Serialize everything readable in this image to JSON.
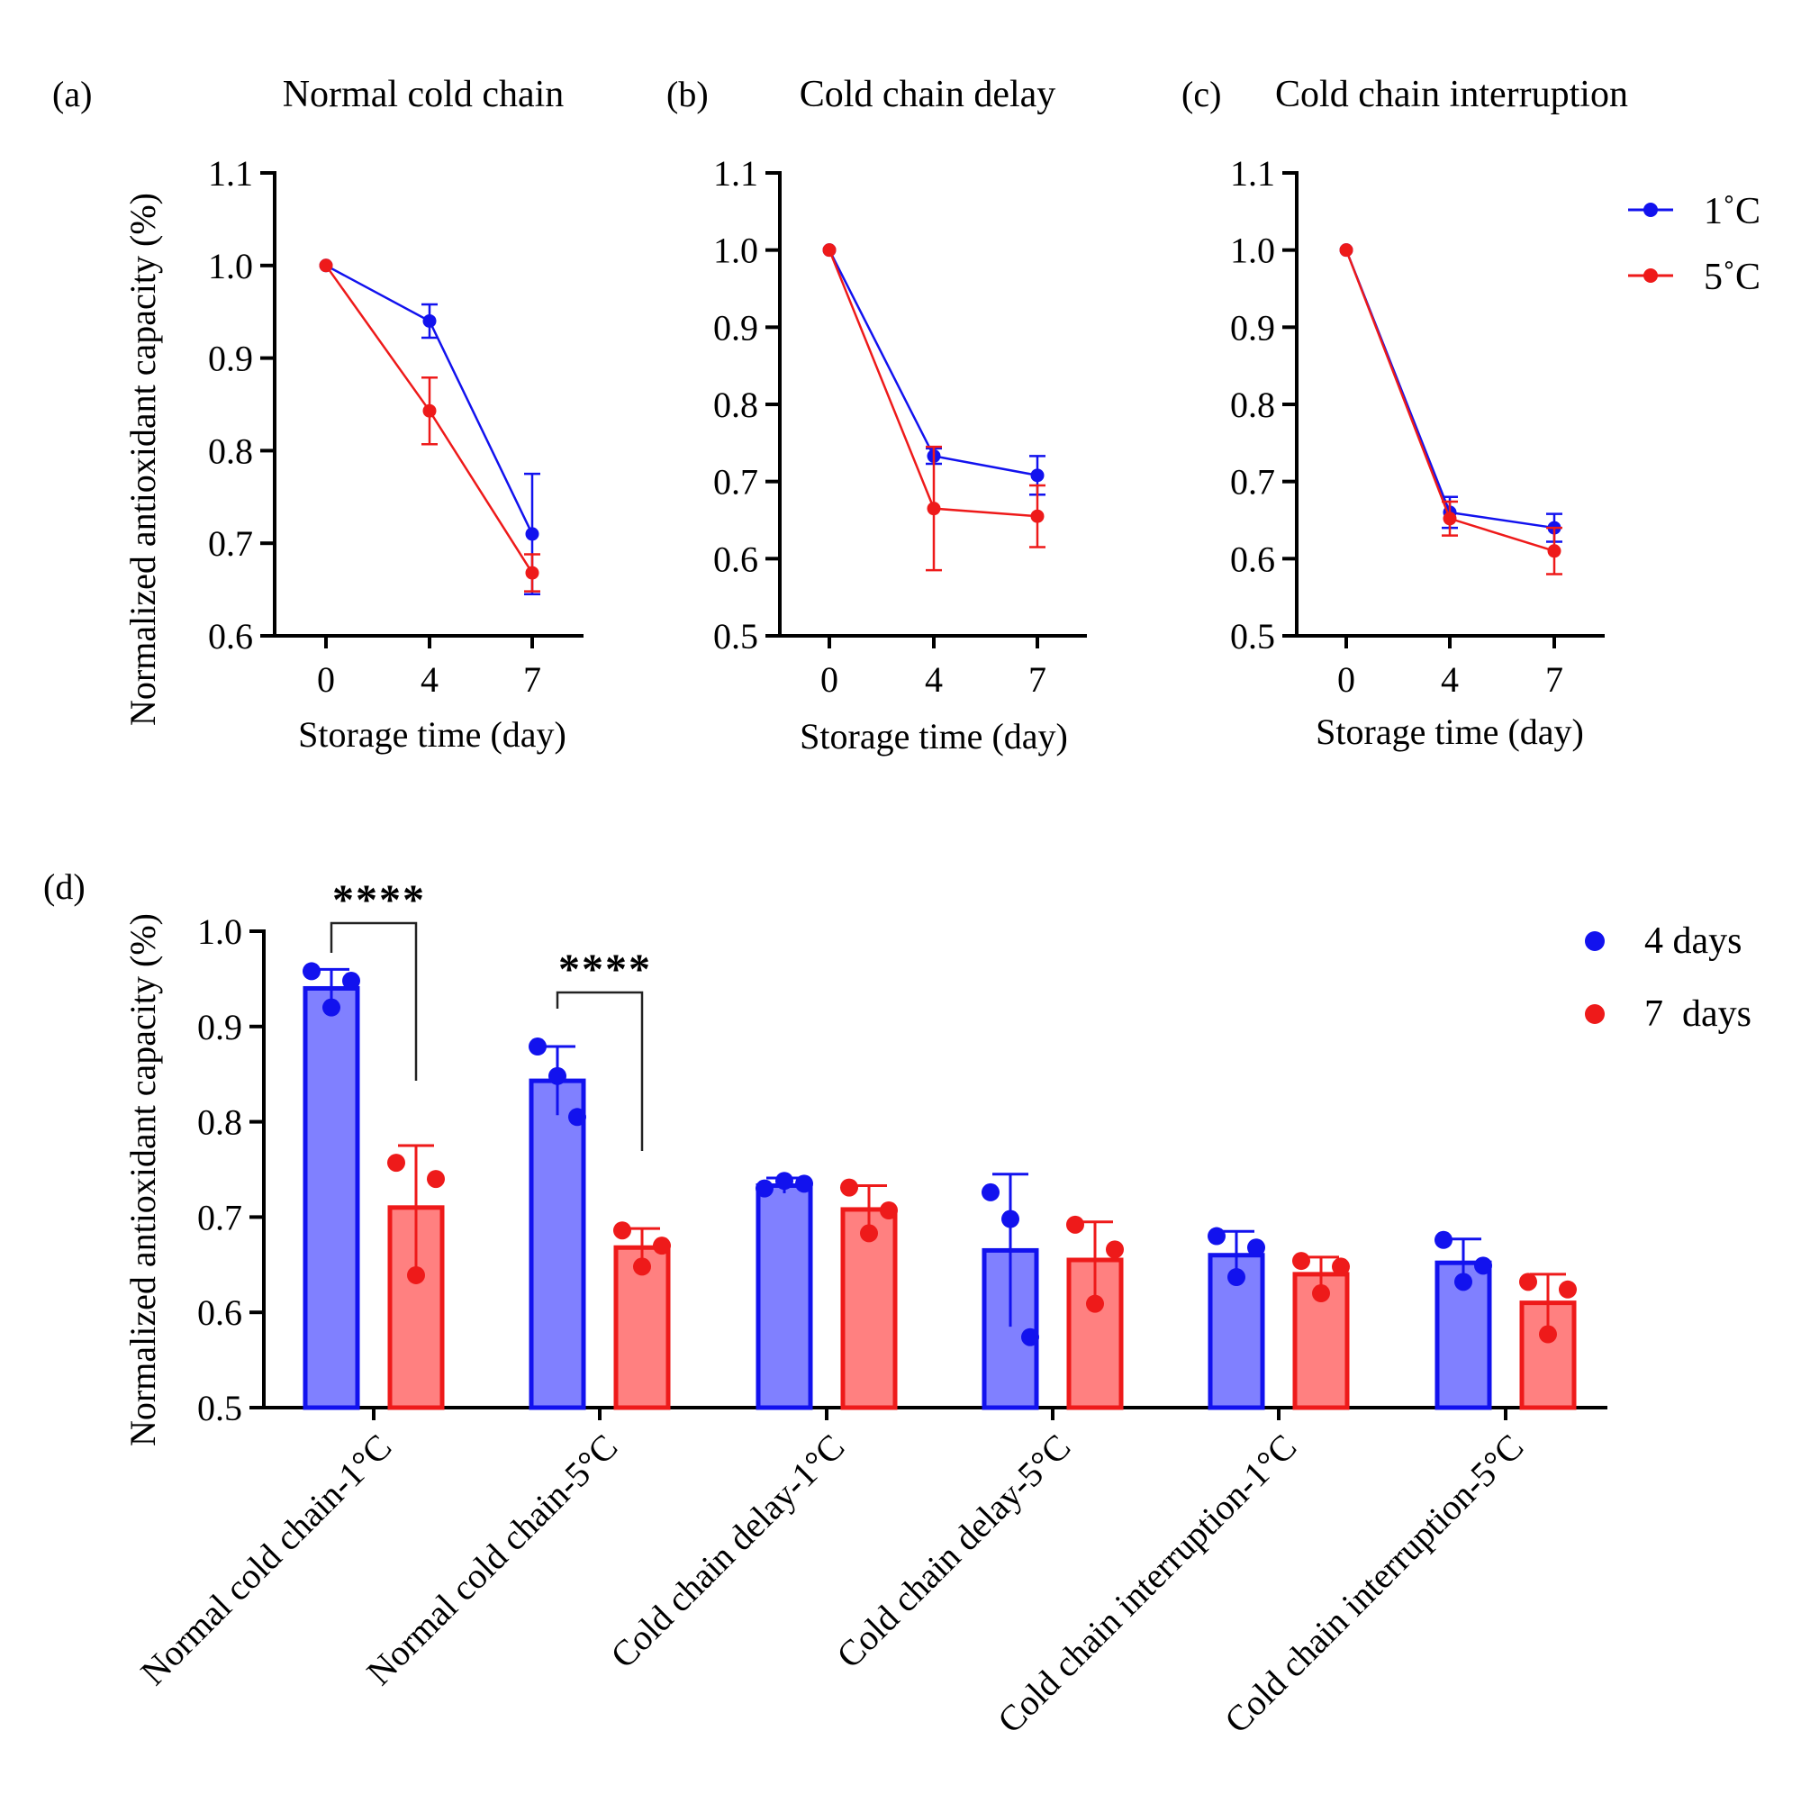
{
  "colors": {
    "blue": "#1212ee",
    "red": "#ee1a1a",
    "blue_fill": "#8080ff",
    "red_fill": "#ff8080",
    "axis": "#000000"
  },
  "ylabel": "Normalized antioxidant capacity (%)",
  "xlabel": "Storage time (day)",
  "legend_top": [
    {
      "label": "1˚C",
      "color": "#1212ee"
    },
    {
      "label": "5˚C",
      "color": "#ee1a1a"
    }
  ],
  "legend_bottom": [
    {
      "label": "4 days",
      "color": "#1212ee"
    },
    {
      "label": "7  days",
      "color": "#ee1a1a"
    }
  ],
  "chart_data": [
    {
      "panel": "(a)",
      "type": "line",
      "title": "Normal cold chain",
      "xlabel": "Storage time (day)",
      "ylabel": "Normalized antioxidant capacity (%)",
      "categories": [
        "0",
        "4",
        "7"
      ],
      "ylim": [
        0.6,
        1.1
      ],
      "yticks": [
        "0.6",
        "0.7",
        "0.8",
        "0.9",
        "1.0",
        "1.1"
      ],
      "series": [
        {
          "name": "1˚C",
          "values": [
            1.0,
            0.94,
            0.71
          ],
          "errors": [
            0,
            0.018,
            0.065
          ]
        },
        {
          "name": "5˚C",
          "values": [
            1.0,
            0.843,
            0.668
          ],
          "errors": [
            0,
            0.036,
            0.02
          ]
        }
      ]
    },
    {
      "panel": "(b)",
      "type": "line",
      "title": "Cold chain delay",
      "xlabel": "Storage time (day)",
      "ylabel": "",
      "categories": [
        "0",
        "4",
        "7"
      ],
      "ylim": [
        0.5,
        1.1
      ],
      "yticks": [
        "0.5",
        "0.6",
        "0.7",
        "0.8",
        "0.9",
        "1.0",
        "1.1"
      ],
      "series": [
        {
          "name": "1˚C",
          "values": [
            1.0,
            0.733,
            0.708
          ],
          "errors": [
            0,
            0.01,
            0.025
          ]
        },
        {
          "name": "5˚C",
          "values": [
            1.0,
            0.665,
            0.655
          ],
          "errors": [
            0,
            0.08,
            0.04
          ]
        }
      ]
    },
    {
      "panel": "(c)",
      "type": "line",
      "title": "Cold chain interruption",
      "xlabel": "Storage time (day)",
      "ylabel": "",
      "categories": [
        "0",
        "4",
        "7"
      ],
      "ylim": [
        0.5,
        1.1
      ],
      "yticks": [
        "0.5",
        "0.6",
        "0.7",
        "0.8",
        "0.9",
        "1.0",
        "1.1"
      ],
      "series": [
        {
          "name": "1˚C",
          "values": [
            1.0,
            0.66,
            0.64
          ],
          "errors": [
            0,
            0.02,
            0.018
          ]
        },
        {
          "name": "5˚C",
          "values": [
            1.0,
            0.652,
            0.61
          ],
          "errors": [
            0,
            0.022,
            0.03
          ]
        }
      ]
    },
    {
      "panel": "(d)",
      "type": "bar",
      "title": "",
      "ylabel": "Normalized antioxidant capacity (%)",
      "categories": [
        "Normal cold chain-1°C",
        "Normal cold chain-5°C",
        "Cold chain delay-1°C",
        "Cold chain delay-5°C",
        "Cold chain interruption-1°C",
        "Cold chain interruption-5°C"
      ],
      "ylim": [
        0.5,
        1.0
      ],
      "yticks": [
        "0.5",
        "0.6",
        "0.7",
        "0.8",
        "0.9",
        "1.0"
      ],
      "series": [
        {
          "name": "4 days",
          "values": [
            0.94,
            0.843,
            0.733,
            0.665,
            0.66,
            0.652
          ],
          "errors": [
            0.02,
            0.036,
            0.008,
            0.08,
            0.025,
            0.025
          ],
          "points": [
            [
              0.958,
              0.92,
              0.948
            ],
            [
              0.879,
              0.848,
              0.805
            ],
            [
              0.73,
              0.738,
              0.735
            ],
            [
              0.726,
              0.698,
              0.574
            ],
            [
              0.68,
              0.637,
              0.668
            ],
            [
              0.676,
              0.632,
              0.649
            ]
          ]
        },
        {
          "name": "7  days",
          "values": [
            0.71,
            0.668,
            0.708,
            0.655,
            0.64,
            0.61
          ],
          "errors": [
            0.065,
            0.02,
            0.025,
            0.04,
            0.018,
            0.03
          ],
          "points": [
            [
              0.757,
              0.639,
              0.74
            ],
            [
              0.686,
              0.648,
              0.67
            ],
            [
              0.731,
              0.683,
              0.707
            ],
            [
              0.692,
              0.609,
              0.666
            ],
            [
              0.654,
              0.62,
              0.648
            ],
            [
              0.632,
              0.577,
              0.624
            ]
          ]
        }
      ],
      "significance": [
        {
          "label": "****",
          "from": "Normal cold chain-1°C / 4 days",
          "to": "Normal cold chain-1°C / 7 days"
        },
        {
          "label": "****",
          "from": "Normal cold chain-5°C / 4 days",
          "to": "Normal cold chain-5°C / 7 days"
        }
      ]
    }
  ]
}
